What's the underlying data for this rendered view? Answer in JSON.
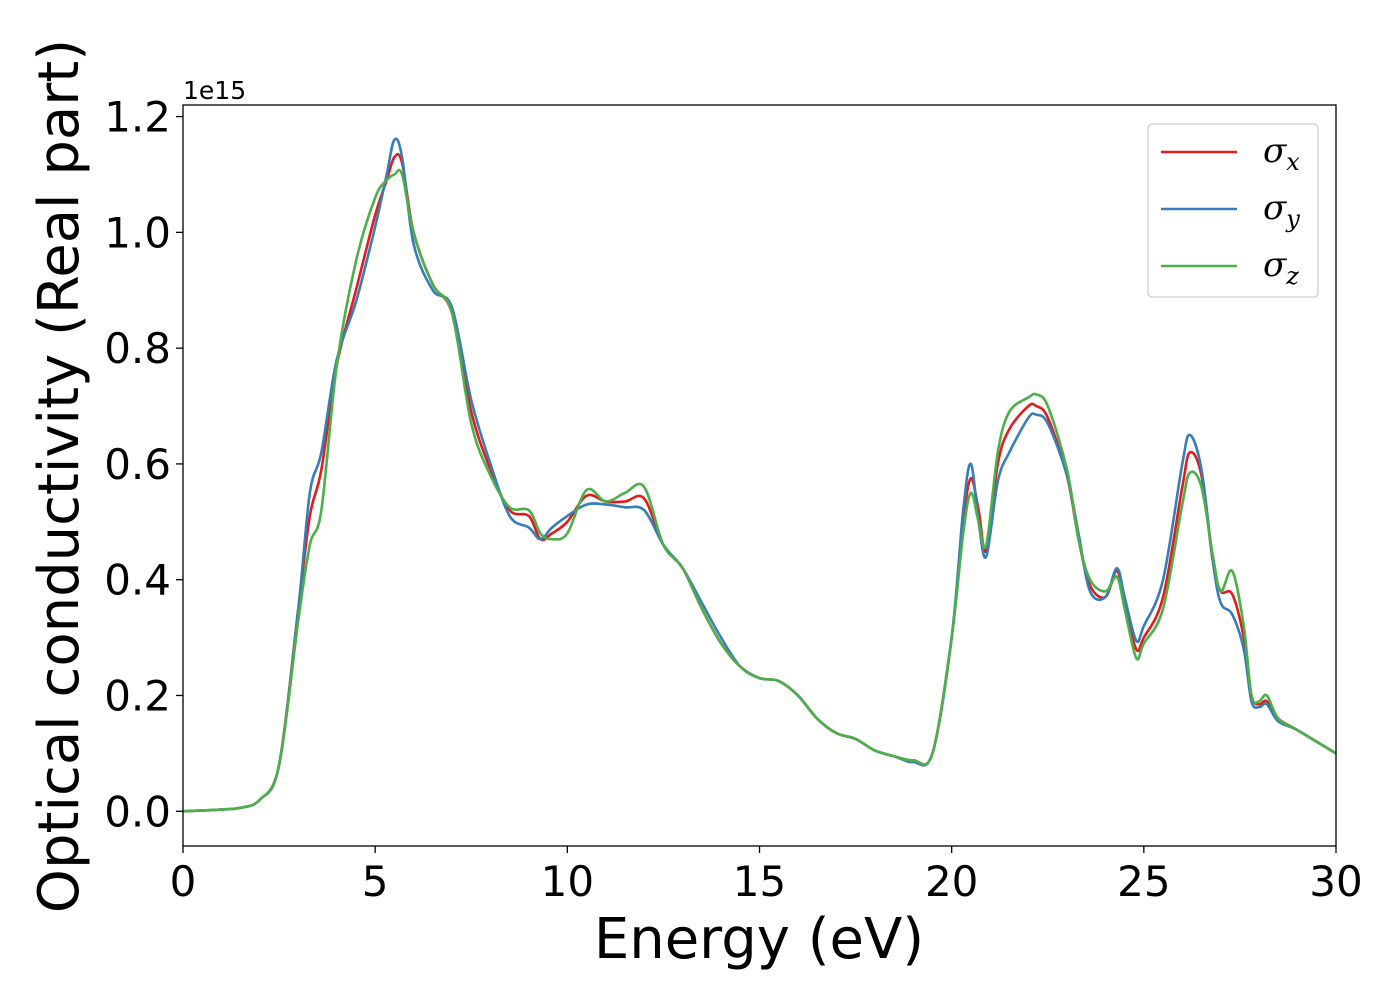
{
  "chart_data": {
    "type": "line",
    "title": "",
    "xlabel": "Energy (eV)",
    "ylabel": "Optical conductivity (Real part)",
    "y_offset_label": "1e15",
    "xlim": [
      0,
      30
    ],
    "ylim": [
      -0.06,
      1.22
    ],
    "xticks": [
      0,
      5,
      10,
      15,
      20,
      25,
      30
    ],
    "yticks": [
      0.0,
      0.2,
      0.4,
      0.6,
      0.8,
      1.0,
      1.2
    ],
    "xtick_labels": [
      "0",
      "5",
      "10",
      "15",
      "20",
      "25",
      "30"
    ],
    "ytick_labels": [
      "0.0",
      "0.2",
      "0.4",
      "0.6",
      "0.8",
      "1.0",
      "1.2"
    ],
    "grid": false,
    "legend_position": "upper right",
    "x": [
      0,
      1,
      1.5,
      2,
      2.5,
      3,
      3.3,
      3.6,
      4,
      4.5,
      5,
      5.3,
      5.5,
      5.7,
      6,
      6.5,
      7,
      7.5,
      8,
      8.5,
      9,
      9.3,
      9.6,
      10,
      10.5,
      11,
      11.5,
      12,
      12.5,
      13,
      13.5,
      14,
      14.5,
      15,
      15.5,
      16,
      16.5,
      17,
      17.5,
      18,
      18.5,
      19,
      19.5,
      20,
      20.3,
      20.5,
      20.7,
      20.9,
      21.2,
      21.5,
      22,
      22.2,
      22.5,
      23,
      23.3,
      23.6,
      24,
      24.3,
      24.5,
      24.8,
      25,
      25.5,
      26,
      26.2,
      26.5,
      26.8,
      27,
      27.3,
      27.6,
      27.8,
      28,
      28.2,
      28.5,
      29,
      30
    ],
    "series": [
      {
        "name": "x",
        "color": "#e41a1c",
        "values": [
          0.0,
          0.003,
          0.006,
          0.02,
          0.08,
          0.35,
          0.51,
          0.59,
          0.77,
          0.9,
          1.03,
          1.09,
          1.13,
          1.12,
          1.0,
          0.91,
          0.86,
          0.69,
          0.59,
          0.52,
          0.51,
          0.47,
          0.48,
          0.5,
          0.545,
          0.535,
          0.535,
          0.54,
          0.46,
          0.42,
          0.35,
          0.29,
          0.25,
          0.23,
          0.225,
          0.2,
          0.16,
          0.135,
          0.125,
          0.105,
          0.095,
          0.088,
          0.1,
          0.3,
          0.5,
          0.575,
          0.52,
          0.45,
          0.6,
          0.66,
          0.7,
          0.7,
          0.68,
          0.58,
          0.47,
          0.39,
          0.37,
          0.415,
          0.36,
          0.28,
          0.3,
          0.37,
          0.56,
          0.62,
          0.58,
          0.43,
          0.38,
          0.375,
          0.3,
          0.2,
          0.185,
          0.19,
          0.16,
          0.14,
          0.1
        ]
      },
      {
        "name": "y",
        "color": "#377eb8",
        "values": [
          0.0,
          0.003,
          0.006,
          0.02,
          0.08,
          0.35,
          0.55,
          0.62,
          0.78,
          0.88,
          1.01,
          1.1,
          1.16,
          1.13,
          0.98,
          0.9,
          0.87,
          0.71,
          0.6,
          0.51,
          0.49,
          0.47,
          0.49,
          0.51,
          0.53,
          0.53,
          0.525,
          0.52,
          0.46,
          0.42,
          0.36,
          0.3,
          0.25,
          0.23,
          0.225,
          0.2,
          0.16,
          0.135,
          0.125,
          0.105,
          0.095,
          0.085,
          0.1,
          0.3,
          0.52,
          0.6,
          0.5,
          0.44,
          0.57,
          0.62,
          0.68,
          0.685,
          0.67,
          0.58,
          0.48,
          0.38,
          0.37,
          0.42,
          0.37,
          0.295,
          0.32,
          0.4,
          0.6,
          0.65,
          0.59,
          0.43,
          0.36,
          0.34,
          0.28,
          0.19,
          0.18,
          0.185,
          0.155,
          0.14,
          0.1
        ]
      },
      {
        "name": "z",
        "color": "#4daf4a",
        "values": [
          0.0,
          0.003,
          0.006,
          0.02,
          0.08,
          0.33,
          0.46,
          0.52,
          0.77,
          0.95,
          1.06,
          1.09,
          1.1,
          1.1,
          1.0,
          0.91,
          0.86,
          0.67,
          0.58,
          0.525,
          0.52,
          0.48,
          0.47,
          0.48,
          0.555,
          0.535,
          0.55,
          0.56,
          0.46,
          0.42,
          0.35,
          0.29,
          0.25,
          0.23,
          0.225,
          0.2,
          0.16,
          0.135,
          0.125,
          0.105,
          0.095,
          0.088,
          0.1,
          0.3,
          0.48,
          0.55,
          0.5,
          0.46,
          0.62,
          0.69,
          0.715,
          0.72,
          0.7,
          0.59,
          0.47,
          0.4,
          0.38,
          0.405,
          0.35,
          0.265,
          0.29,
          0.35,
          0.53,
          0.585,
          0.56,
          0.44,
          0.38,
          0.415,
          0.32,
          0.2,
          0.19,
          0.2,
          0.16,
          0.14,
          0.1
        ]
      }
    ]
  }
}
